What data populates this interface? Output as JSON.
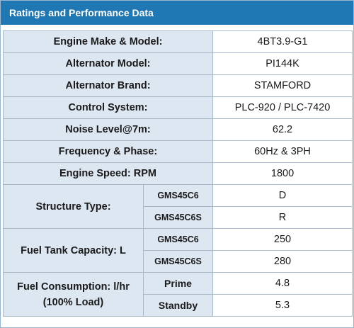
{
  "title": "Ratings and Performance Data",
  "rows": {
    "engine": {
      "label": "Engine Make & Model:",
      "value": "4BT3.9-G1"
    },
    "alt_model": {
      "label": "Alternator Model:",
      "value": "PI144K"
    },
    "alt_brand": {
      "label": "Alternator Brand:",
      "value": "STAMFORD"
    },
    "control": {
      "label": "Control System:",
      "value": "PLC-920 / PLC-7420"
    },
    "noise": {
      "label": "Noise Level@7m:",
      "value": "62.2"
    },
    "freq": {
      "label": "Frequency & Phase:",
      "value": "60Hz & 3PH"
    },
    "speed": {
      "label": "Engine Speed: RPM",
      "value": "1800"
    }
  },
  "structure": {
    "label": "Structure Type:",
    "sub": [
      {
        "name": "GMS45C6",
        "value": "D"
      },
      {
        "name": "GMS45C6S",
        "value": "R"
      }
    ]
  },
  "fuel_tank": {
    "label": "Fuel Tank Capacity: L",
    "sub": [
      {
        "name": "GMS45C6",
        "value": "250"
      },
      {
        "name": "GMS45C6S",
        "value": "280"
      }
    ]
  },
  "fuel_consumption": {
    "label_line1": "Fuel Consumption: l/hr",
    "label_line2": "(100% Load)",
    "sub": [
      {
        "name": "Prime",
        "value": "4.8"
      },
      {
        "name": "Standby",
        "value": "5.3"
      }
    ]
  }
}
